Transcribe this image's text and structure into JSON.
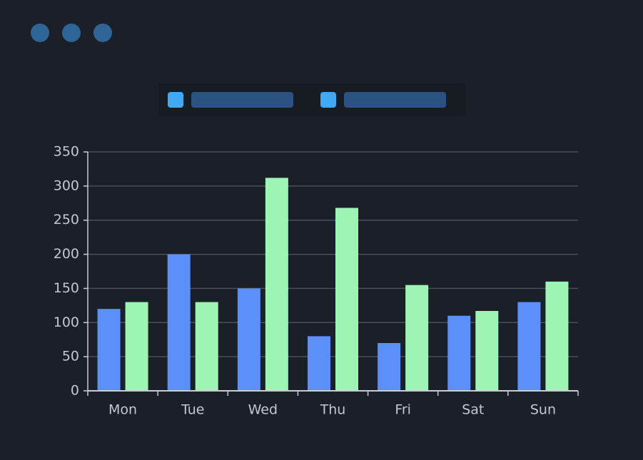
{
  "chart_data": {
    "type": "bar",
    "categories": [
      "Mon",
      "Tue",
      "Wed",
      "Thu",
      "Fri",
      "Sat",
      "Sun"
    ],
    "series": [
      {
        "color": "#5b8ff9",
        "values": [
          120,
          200,
          150,
          80,
          70,
          110,
          130
        ]
      },
      {
        "color": "#9df5b4",
        "values": [
          130,
          130,
          312,
          268,
          155,
          117,
          160
        ]
      }
    ],
    "ylim": [
      0,
      350
    ],
    "yticks": [
      0,
      50,
      100,
      150,
      200,
      250,
      300,
      350
    ],
    "grid": true
  }
}
